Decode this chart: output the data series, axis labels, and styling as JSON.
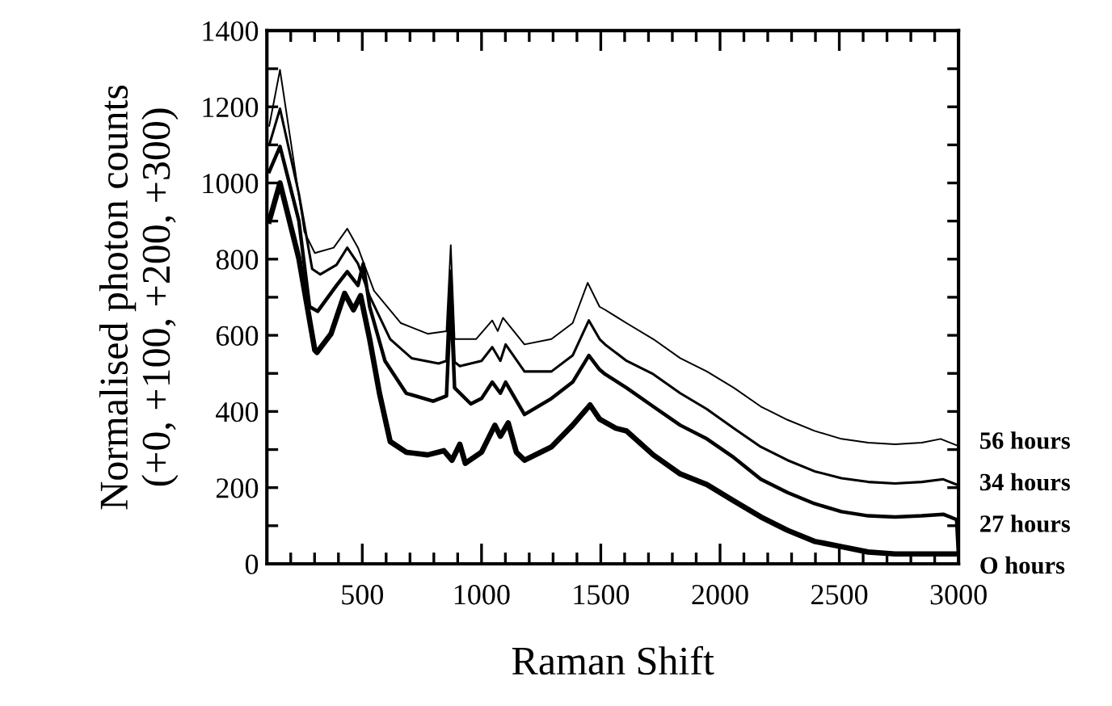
{
  "chart_data": {
    "type": "line",
    "xlabel": "Raman Shift",
    "ylabel": "Normalised photon counts\n(+0, +100, +200, +300)",
    "xlim": [
      100,
      3000
    ],
    "ylim": [
      0,
      1400
    ],
    "xticks": [
      {
        "value": 200,
        "label": null
      },
      {
        "value": 300,
        "label": null
      },
      {
        "value": 400,
        "label": null
      },
      500,
      {
        "value": 600,
        "label": null
      },
      {
        "value": 700,
        "label": null
      },
      {
        "value": 800,
        "label": null
      },
      {
        "value": 900,
        "label": null
      },
      1000,
      {
        "value": 1100,
        "label": null
      },
      {
        "value": 1200,
        "label": null
      },
      {
        "value": 1300,
        "label": null
      },
      {
        "value": 1400,
        "label": null
      },
      1500,
      {
        "value": 1600,
        "label": null
      },
      {
        "value": 1700,
        "label": null
      },
      {
        "value": 1800,
        "label": null
      },
      {
        "value": 1900,
        "label": null
      },
      2000,
      {
        "value": 2100,
        "label": null
      },
      {
        "value": 2200,
        "label": null
      },
      {
        "value": 2300,
        "label": null
      },
      {
        "value": 2400,
        "label": null
      },
      2500,
      {
        "value": 2600,
        "label": null
      },
      {
        "value": 2700,
        "label": null
      },
      {
        "value": 2800,
        "label": null
      },
      {
        "value": 2900,
        "label": null
      },
      3000
    ],
    "yticks": [
      0,
      {
        "value": 100,
        "label": null
      },
      200,
      {
        "value": 300,
        "label": null
      },
      400,
      {
        "value": 500,
        "label": null
      },
      600,
      {
        "value": 700,
        "label": null
      },
      800,
      {
        "value": 900,
        "label": null
      },
      1000,
      {
        "value": 1100,
        "label": null
      },
      1200,
      {
        "value": 1300,
        "label": null
      },
      1400
    ],
    "grid": false,
    "legend": "right",
    "marker": "none",
    "line_style": "solid",
    "series": [
      {
        "name": "56 hours",
        "color": "#000000",
        "x": [
          110,
          155,
          257,
          301,
          380,
          437,
          482,
          549,
          662,
          774,
          853,
          871,
          887,
          977,
          1045,
          1068,
          1090,
          1180,
          1293,
          1382,
          1445,
          1495,
          1518,
          1608,
          1720,
          1833,
          1945,
          2058,
          2171,
          2283,
          2396,
          2509,
          2621,
          2734,
          2846,
          2925,
          2992
        ],
        "values": [
          1150,
          1297,
          872,
          816,
          830,
          880,
          830,
          717,
          632,
          604,
          611,
          837,
          590,
          590,
          639,
          611,
          646,
          576,
          590,
          632,
          738,
          675,
          667,
          632,
          590,
          540,
          505,
          462,
          413,
          378,
          349,
          328,
          318,
          314,
          318,
          328,
          311
        ]
      },
      {
        "name": "34 hours",
        "color": "#000000",
        "x": [
          110,
          155,
          234,
          290,
          324,
          392,
          437,
          482,
          531,
          617,
          707,
          820,
          853,
          871,
          887,
          909,
          1000,
          1045,
          1079,
          1101,
          1180,
          1293,
          1382,
          1450,
          1495,
          1518,
          1608,
          1720,
          1833,
          1945,
          2058,
          2171,
          2283,
          2396,
          2509,
          2621,
          2734,
          2846,
          2936,
          2992
        ],
        "values": [
          1100,
          1195,
          972,
          774,
          760,
          785,
          830,
          788,
          703,
          590,
          540,
          526,
          533,
          770,
          530,
          519,
          533,
          569,
          533,
          576,
          505,
          505,
          547,
          639,
          590,
          576,
          533,
          498,
          448,
          406,
          356,
          307,
          272,
          243,
          225,
          215,
          211,
          215,
          222,
          208
        ]
      },
      {
        "name": "27 hours",
        "color": "#000000",
        "x": [
          110,
          155,
          234,
          279,
          313,
          392,
          437,
          482,
          504,
          531,
          595,
          684,
          797,
          853,
          871,
          887,
          955,
          1000,
          1045,
          1079,
          1101,
          1180,
          1293,
          1382,
          1450,
          1495,
          1518,
          1608,
          1720,
          1833,
          1945,
          2058,
          2171,
          2283,
          2396,
          2509,
          2621,
          2734,
          2846,
          2936,
          2992,
          2999
        ],
        "values": [
          1030,
          1096,
          901,
          675,
          663,
          731,
          767,
          731,
          788,
          675,
          533,
          448,
          427,
          441,
          703,
          462,
          420,
          434,
          477,
          448,
          477,
          392,
          434,
          477,
          547,
          510,
          498,
          462,
          413,
          364,
          328,
          279,
          222,
          187,
          158,
          137,
          126,
          123,
          126,
          130,
          116,
          30
        ]
      },
      {
        "name": "O hours",
        "color": "#000000",
        "x": [
          110,
          155,
          234,
          301,
          310,
          369,
          426,
          463,
          493,
          531,
          572,
          617,
          684,
          774,
          842,
          876,
          909,
          932,
          1000,
          1056,
          1079,
          1112,
          1146,
          1180,
          1293,
          1382,
          1455,
          1495,
          1563,
          1608,
          1720,
          1833,
          1945,
          2058,
          2171,
          2283,
          2396,
          2509,
          2621,
          2734,
          2892,
          2982
        ],
        "values": [
          900,
          1000,
          802,
          561,
          555,
          604,
          710,
          667,
          704,
          590,
          448,
          321,
          293,
          286,
          297,
          272,
          314,
          264,
          293,
          364,
          335,
          370,
          293,
          272,
          307,
          364,
          417,
          380,
          356,
          349,
          286,
          236,
          208,
          165,
          123,
          88,
          59,
          45,
          31,
          26,
          26,
          26
        ]
      }
    ]
  }
}
